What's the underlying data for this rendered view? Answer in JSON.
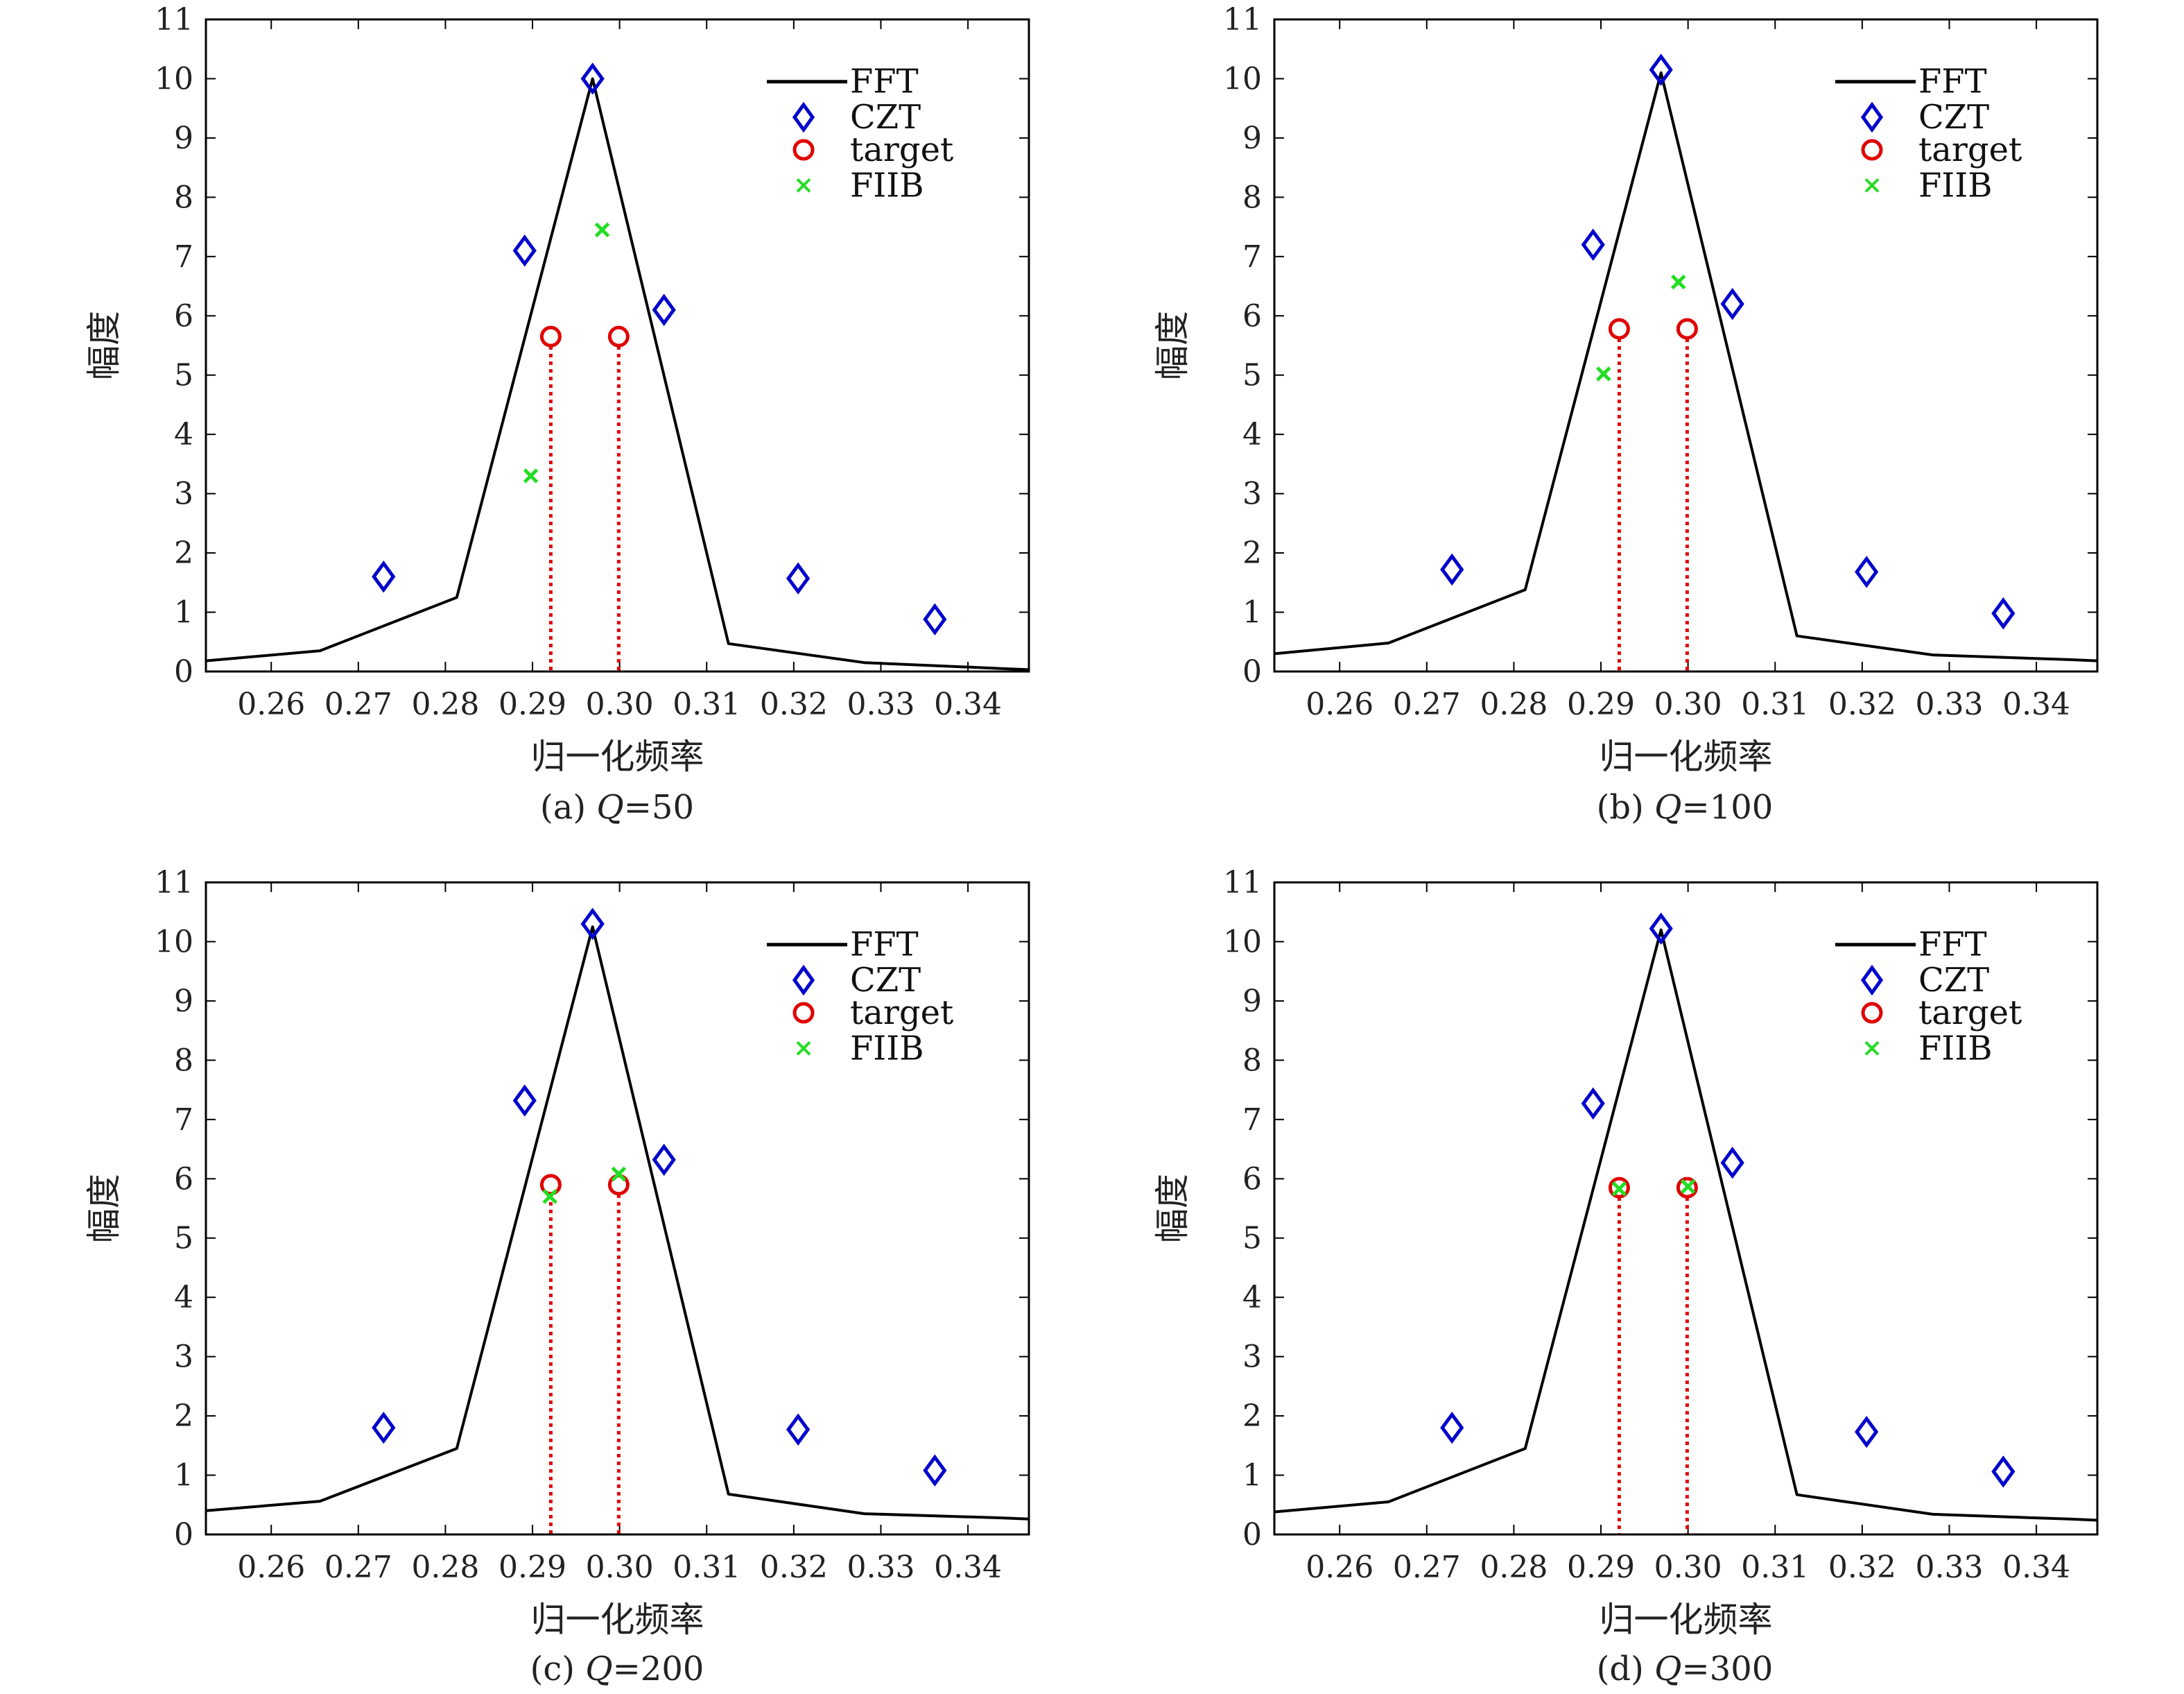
{
  "figure": {
    "panel_captions": [
      {
        "label": "(a)",
        "var": "Q",
        "value": "=50"
      },
      {
        "label": "(b)",
        "var": "Q",
        "value": "=100"
      },
      {
        "label": "(c)",
        "var": "Q",
        "value": "=200"
      },
      {
        "label": "(d)",
        "var": "Q",
        "value": "=300"
      }
    ]
  },
  "chart_data": [
    {
      "type": "line",
      "title": "",
      "xlabel": "归一化频率",
      "ylabel": "幅度",
      "xlim": [
        0.2525,
        0.347
      ],
      "ylim": [
        0,
        11
      ],
      "xticks": [
        0.26,
        0.27,
        0.28,
        0.29,
        0.3,
        0.31,
        0.32,
        0.33,
        0.34
      ],
      "xtick_labels": [
        "0.26",
        "0.27",
        "0.28",
        "0.29",
        "0.30",
        "0.31",
        "0.32",
        "0.33",
        "0.34"
      ],
      "yticks": [
        0,
        1,
        2,
        3,
        4,
        5,
        6,
        7,
        8,
        9,
        10,
        11
      ],
      "ytick_labels": [
        "0",
        "1",
        "2",
        "3",
        "4",
        "5",
        "6",
        "7",
        "8",
        "9",
        "10",
        "11"
      ],
      "grid": false,
      "legend": "top-right",
      "series": [
        {
          "name": "FFT",
          "kind": "line",
          "color": "#000000",
          "x": [
            0.2525,
            0.2656,
            0.2813,
            0.2969,
            0.3125,
            0.3281,
            0.3438,
            0.347
          ],
          "y": [
            0.18,
            0.35,
            1.25,
            10.0,
            0.47,
            0.15,
            0.05,
            0.03
          ]
        },
        {
          "name": "CZT",
          "kind": "diamond",
          "color": "#0000cc",
          "x": [
            0.2729,
            0.2891,
            0.2969,
            0.3051,
            0.3205,
            0.3362
          ],
          "y": [
            1.6,
            7.1,
            10.0,
            6.1,
            1.57,
            0.88
          ]
        },
        {
          "name": "target",
          "kind": "circle-stem",
          "color": "#e00000",
          "x": [
            0.2921,
            0.2999
          ],
          "y": [
            5.65,
            5.65
          ]
        },
        {
          "name": "FIIB",
          "kind": "cross",
          "color": "#22dd22",
          "x": [
            0.2898,
            0.298
          ],
          "y": [
            3.3,
            7.45
          ]
        }
      ]
    },
    {
      "type": "line",
      "title": "",
      "xlabel": "归一化频率",
      "ylabel": "幅度",
      "xlim": [
        0.2525,
        0.347
      ],
      "ylim": [
        0,
        11
      ],
      "xticks": [
        0.26,
        0.27,
        0.28,
        0.29,
        0.3,
        0.31,
        0.32,
        0.33,
        0.34
      ],
      "xtick_labels": [
        "0.26",
        "0.27",
        "0.28",
        "0.29",
        "0.30",
        "0.31",
        "0.32",
        "0.33",
        "0.34"
      ],
      "yticks": [
        0,
        1,
        2,
        3,
        4,
        5,
        6,
        7,
        8,
        9,
        10,
        11
      ],
      "ytick_labels": [
        "0",
        "1",
        "2",
        "3",
        "4",
        "5",
        "6",
        "7",
        "8",
        "9",
        "10",
        "11"
      ],
      "grid": false,
      "legend": "top-right",
      "series": [
        {
          "name": "FFT",
          "kind": "line",
          "color": "#000000",
          "x": [
            0.2525,
            0.2656,
            0.2813,
            0.2969,
            0.3125,
            0.3281,
            0.3438,
            0.347
          ],
          "y": [
            0.3,
            0.48,
            1.38,
            10.1,
            0.6,
            0.28,
            0.2,
            0.18
          ]
        },
        {
          "name": "CZT",
          "kind": "diamond",
          "color": "#0000cc",
          "x": [
            0.2729,
            0.2891,
            0.2969,
            0.3051,
            0.3205,
            0.3362
          ],
          "y": [
            1.72,
            7.2,
            10.15,
            6.2,
            1.68,
            0.98
          ]
        },
        {
          "name": "target",
          "kind": "circle-stem",
          "color": "#e00000",
          "x": [
            0.2921,
            0.2999
          ],
          "y": [
            5.78,
            5.78
          ]
        },
        {
          "name": "FIIB",
          "kind": "cross",
          "color": "#22dd22",
          "x": [
            0.2903,
            0.2989
          ],
          "y": [
            5.02,
            6.57
          ]
        }
      ]
    },
    {
      "type": "line",
      "title": "",
      "xlabel": "归一化频率",
      "ylabel": "幅度",
      "xlim": [
        0.2525,
        0.347
      ],
      "ylim": [
        0,
        11
      ],
      "xticks": [
        0.26,
        0.27,
        0.28,
        0.29,
        0.3,
        0.31,
        0.32,
        0.33,
        0.34
      ],
      "xtick_labels": [
        "0.26",
        "0.27",
        "0.28",
        "0.29",
        "0.30",
        "0.31",
        "0.32",
        "0.33",
        "0.34"
      ],
      "yticks": [
        0,
        1,
        2,
        3,
        4,
        5,
        6,
        7,
        8,
        9,
        10,
        11
      ],
      "ytick_labels": [
        "0",
        "1",
        "2",
        "3",
        "4",
        "5",
        "6",
        "7",
        "8",
        "9",
        "10",
        "11"
      ],
      "grid": false,
      "legend": "top-right",
      "series": [
        {
          "name": "FFT",
          "kind": "line",
          "color": "#000000",
          "x": [
            0.2525,
            0.2656,
            0.2813,
            0.2969,
            0.3125,
            0.3281,
            0.3438,
            0.347
          ],
          "y": [
            0.4,
            0.56,
            1.45,
            10.25,
            0.68,
            0.35,
            0.28,
            0.26
          ]
        },
        {
          "name": "CZT",
          "kind": "diamond",
          "color": "#0000cc",
          "x": [
            0.2729,
            0.2891,
            0.2969,
            0.3051,
            0.3205,
            0.3362
          ],
          "y": [
            1.8,
            7.32,
            10.3,
            6.32,
            1.77,
            1.08
          ]
        },
        {
          "name": "target",
          "kind": "circle-stem",
          "color": "#e00000",
          "x": [
            0.2921,
            0.2999
          ],
          "y": [
            5.9,
            5.9
          ]
        },
        {
          "name": "FIIB",
          "kind": "cross",
          "color": "#22dd22",
          "x": [
            0.292,
            0.2999
          ],
          "y": [
            5.7,
            6.08
          ]
        }
      ]
    },
    {
      "type": "line",
      "title": "",
      "xlabel": "归一化频率",
      "ylabel": "幅度",
      "xlim": [
        0.2525,
        0.347
      ],
      "ylim": [
        0,
        11
      ],
      "xticks": [
        0.26,
        0.27,
        0.28,
        0.29,
        0.3,
        0.31,
        0.32,
        0.33,
        0.34
      ],
      "xtick_labels": [
        "0.26",
        "0.27",
        "0.28",
        "0.29",
        "0.30",
        "0.31",
        "0.32",
        "0.33",
        "0.34"
      ],
      "yticks": [
        0,
        1,
        2,
        3,
        4,
        5,
        6,
        7,
        8,
        9,
        10,
        11
      ],
      "ytick_labels": [
        "0",
        "1",
        "2",
        "3",
        "4",
        "5",
        "6",
        "7",
        "8",
        "9",
        "10",
        "11"
      ],
      "grid": false,
      "legend": "top-right",
      "series": [
        {
          "name": "FFT",
          "kind": "line",
          "color": "#000000",
          "x": [
            0.2525,
            0.2656,
            0.2813,
            0.2969,
            0.3125,
            0.3281,
            0.3438,
            0.347
          ],
          "y": [
            0.38,
            0.55,
            1.45,
            10.2,
            0.67,
            0.34,
            0.26,
            0.24
          ]
        },
        {
          "name": "CZT",
          "kind": "diamond",
          "color": "#0000cc",
          "x": [
            0.2729,
            0.2891,
            0.2969,
            0.3051,
            0.3205,
            0.3362
          ],
          "y": [
            1.8,
            7.27,
            10.22,
            6.27,
            1.73,
            1.06
          ]
        },
        {
          "name": "target",
          "kind": "circle-stem",
          "color": "#e00000",
          "x": [
            0.2921,
            0.2999
          ],
          "y": [
            5.85,
            5.85
          ]
        },
        {
          "name": "FIIB",
          "kind": "cross",
          "color": "#22dd22",
          "x": [
            0.2921,
            0.3
          ],
          "y": [
            5.83,
            5.87
          ]
        }
      ]
    }
  ]
}
